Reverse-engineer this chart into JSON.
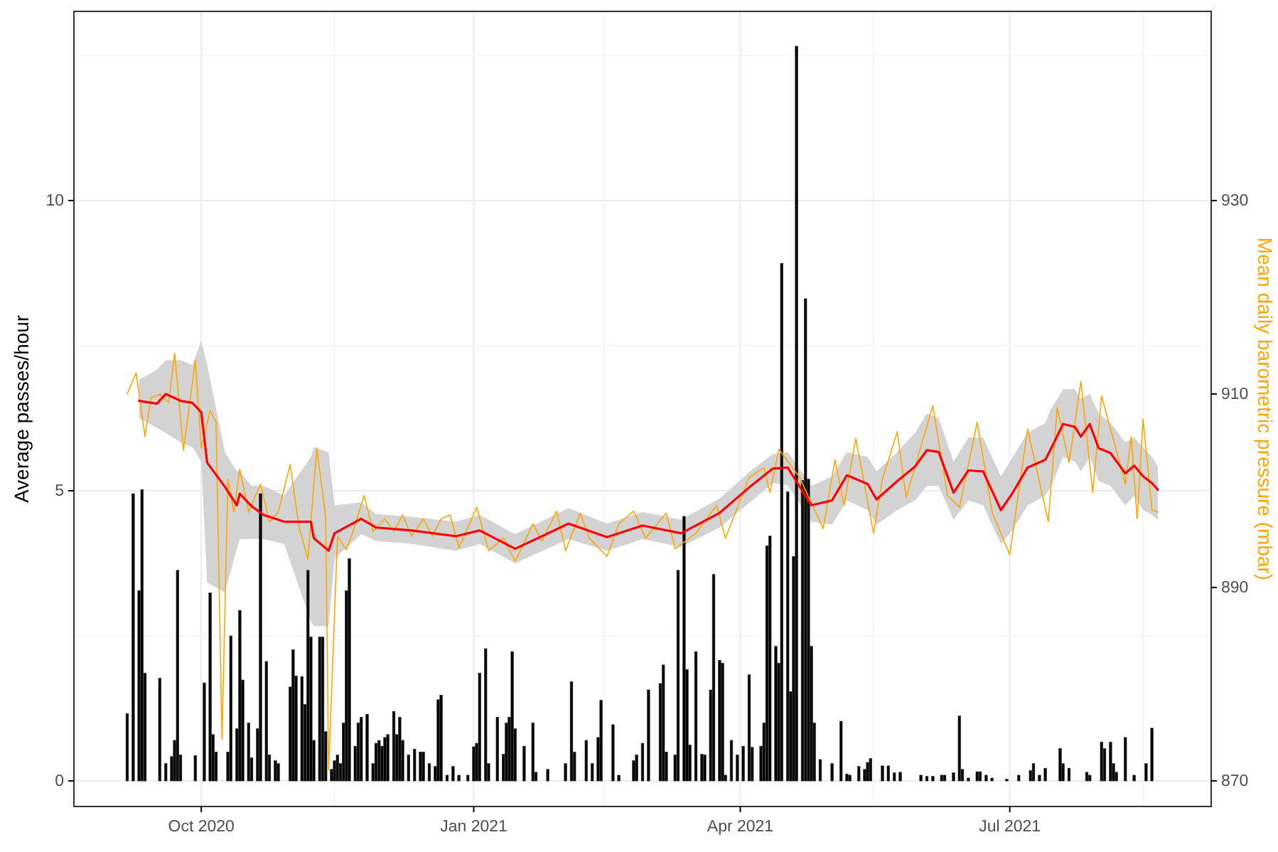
{
  "chart_data": {
    "type": "bar",
    "ylabel": "Average passes/hour",
    "y2label": "Mean daily barometric pressure (mbar)",
    "xlim": [
      "2020-08-19",
      "2021-09-07"
    ],
    "xticks": [
      {
        "value": "2020-10-01",
        "label": "Oct 2020"
      },
      {
        "value": "2020-11-15",
        "label": null
      },
      {
        "value": "2021-01-01",
        "label": "Jan 2021"
      },
      {
        "value": "2021-02-14",
        "label": null
      },
      {
        "value": "2021-04-01",
        "label": "Apr 2021"
      },
      {
        "value": "2021-05-16",
        "label": null
      },
      {
        "value": "2021-07-01",
        "label": "Jul 2021"
      },
      {
        "value": "2021-08-15",
        "label": null
      }
    ],
    "ylim": [
      -0.44,
      13.26
    ],
    "yticks": [
      0,
      {
        "value": 2.5,
        "label": null
      },
      5,
      {
        "value": 7.5,
        "label": null
      },
      10,
      {
        "value": 12.5,
        "label": null
      }
    ],
    "y2lim": [
      867.36,
      949.56
    ],
    "y2ticks": [
      870,
      890,
      910,
      930
    ],
    "grid": true,
    "series": [
      {
        "color": "#000000",
        "x": [
          "2020-09-06",
          "2020-09-08",
          "2020-09-10",
          "2020-09-11",
          "2020-09-12",
          "2020-09-17",
          "2020-09-19",
          "2020-09-21",
          "2020-09-22",
          "2020-09-23",
          "2020-09-24",
          "2020-09-29",
          "2020-10-02",
          "2020-10-04",
          "2020-10-05",
          "2020-10-06",
          "2020-10-10",
          "2020-10-11",
          "2020-10-13",
          "2020-10-14",
          "2020-10-15",
          "2020-10-17",
          "2020-10-18",
          "2020-10-20",
          "2020-10-21",
          "2020-10-23",
          "2020-10-24",
          "2020-10-26",
          "2020-10-27",
          "2020-10-31",
          "2020-11-01",
          "2020-11-02",
          "2020-11-04",
          "2020-11-05",
          "2020-11-06",
          "2020-11-07",
          "2020-11-08",
          "2020-11-10",
          "2020-11-11",
          "2020-11-12",
          "2020-11-14",
          "2020-11-15",
          "2020-11-16",
          "2020-11-17",
          "2020-11-18",
          "2020-11-19",
          "2020-11-20",
          "2020-11-22",
          "2020-11-23",
          "2020-11-24",
          "2020-11-26",
          "2020-11-28",
          "2020-11-29",
          "2020-11-30",
          "2020-12-01",
          "2020-12-02",
          "2020-12-03",
          "2020-12-05",
          "2020-12-06",
          "2020-12-07",
          "2020-12-08",
          "2020-12-10",
          "2020-12-12",
          "2020-12-14",
          "2020-12-15",
          "2020-12-17",
          "2020-12-19",
          "2020-12-20",
          "2020-12-21",
          "2020-12-23",
          "2020-12-25",
          "2020-12-27",
          "2020-12-30",
          "2021-01-01",
          "2021-01-02",
          "2021-01-03",
          "2021-01-05",
          "2021-01-06",
          "2021-01-09",
          "2021-01-11",
          "2021-01-12",
          "2021-01-13",
          "2021-01-14",
          "2021-01-15",
          "2021-01-18",
          "2021-01-21",
          "2021-01-22",
          "2021-01-26",
          "2021-02-01",
          "2021-02-03",
          "2021-02-04",
          "2021-02-08",
          "2021-02-10",
          "2021-02-12",
          "2021-02-13",
          "2021-02-17",
          "2021-02-19",
          "2021-02-24",
          "2021-02-25",
          "2021-02-27",
          "2021-03-01",
          "2021-03-05",
          "2021-03-06",
          "2021-03-07",
          "2021-03-10",
          "2021-03-11",
          "2021-03-13",
          "2021-03-14",
          "2021-03-15",
          "2021-03-17",
          "2021-03-19",
          "2021-03-20",
          "2021-03-22",
          "2021-03-23",
          "2021-03-25",
          "2021-03-26",
          "2021-03-27",
          "2021-03-29",
          "2021-03-31",
          "2021-04-02",
          "2021-04-04",
          "2021-04-05",
          "2021-04-08",
          "2021-04-09",
          "2021-04-10",
          "2021-04-11",
          "2021-04-13",
          "2021-04-14",
          "2021-04-15",
          "2021-04-17",
          "2021-04-18",
          "2021-04-19",
          "2021-04-20",
          "2021-04-22",
          "2021-04-23",
          "2021-04-24",
          "2021-04-25",
          "2021-04-26",
          "2021-04-28",
          "2021-05-02",
          "2021-05-05",
          "2021-05-07",
          "2021-05-08",
          "2021-05-11",
          "2021-05-13",
          "2021-05-14",
          "2021-05-15",
          "2021-05-19",
          "2021-05-21",
          "2021-05-23",
          "2021-05-25",
          "2021-06-01",
          "2021-06-03",
          "2021-06-05",
          "2021-06-08",
          "2021-06-09",
          "2021-06-12",
          "2021-06-14",
          "2021-06-15",
          "2021-06-17",
          "2021-06-20",
          "2021-06-21",
          "2021-06-23",
          "2021-06-25",
          "2021-06-30",
          "2021-07-04",
          "2021-07-08",
          "2021-07-09",
          "2021-07-11",
          "2021-07-13",
          "2021-07-18",
          "2021-07-19",
          "2021-07-21",
          "2021-07-27",
          "2021-07-28",
          "2021-08-01",
          "2021-08-02",
          "2021-08-04",
          "2021-08-05",
          "2021-08-06",
          "2021-08-09",
          "2021-08-12",
          "2021-08-16",
          "2021-08-18"
        ],
        "values": [
          1.16,
          4.95,
          3.28,
          5.02,
          1.86,
          1.77,
          0.3,
          0.42,
          0.7,
          3.63,
          0.45,
          0.44,
          1.69,
          3.24,
          0.8,
          0.5,
          0.5,
          2.5,
          0.9,
          2.94,
          1.74,
          1.0,
          0.4,
          0.9,
          4.95,
          2.06,
          0.45,
          0.35,
          0.3,
          1.62,
          2.26,
          1.81,
          1.8,
          1.32,
          3.63,
          2.48,
          0.7,
          2.48,
          2.48,
          0.85,
          0.2,
          0.35,
          0.45,
          0.3,
          1.0,
          3.28,
          3.83,
          0.6,
          1.0,
          1.1,
          1.15,
          0.3,
          0.65,
          0.7,
          0.6,
          0.75,
          0.8,
          1.2,
          0.8,
          1.1,
          0.7,
          0.45,
          0.55,
          0.5,
          0.5,
          0.3,
          0.25,
          1.4,
          1.48,
          0.1,
          0.25,
          0.1,
          0.1,
          0.59,
          0.65,
          1.86,
          2.28,
          0.3,
          1.1,
          0.46,
          1.0,
          1.1,
          2.23,
          0.9,
          0.6,
          1.0,
          0.15,
          0.2,
          0.3,
          1.71,
          0.5,
          0.7,
          0.3,
          0.75,
          1.39,
          0.97,
          0.1,
          0.35,
          0.45,
          0.65,
          1.57,
          1.68,
          2.0,
          0.5,
          0.45,
          3.63,
          4.56,
          1.92,
          0.62,
          2.23,
          0.46,
          0.45,
          1.57,
          3.56,
          2.08,
          2.03,
          0.1,
          0.7,
          0.45,
          0.6,
          1.83,
          0.58,
          0.6,
          1.0,
          4.05,
          4.22,
          2.32,
          2.03,
          8.92,
          4.98,
          1.54,
          3.87,
          12.66,
          5.18,
          8.31,
          5.2,
          2.32,
          1.0,
          0.37,
          0.3,
          1.03,
          0.12,
          0.1,
          0.25,
          0.2,
          0.32,
          0.39,
          0.26,
          0.26,
          0.14,
          0.15,
          0.1,
          0.08,
          0.08,
          0.1,
          0.1,
          0.14,
          1.12,
          0.2,
          0.05,
          0.16,
          0.16,
          0.1,
          0.05,
          0.03,
          0.1,
          0.18,
          0.3,
          0.1,
          0.22,
          0.56,
          0.3,
          0.22,
          0.15,
          0.1,
          0.67,
          0.56,
          0.67,
          0.3,
          0.15,
          0.75,
          0.1,
          0.3,
          0.91
        ]
      },
      {
        "type": "line",
        "axis": "y2",
        "color": "#ffa500",
        "x": [
          "2020-09-06",
          "2020-09-09",
          "2020-09-12",
          "2020-09-14",
          "2020-09-17",
          "2020-09-20",
          "2020-09-22",
          "2020-09-25",
          "2020-09-29",
          "2020-10-01",
          "2020-10-04",
          "2020-10-06",
          "2020-10-08",
          "2020-10-10",
          "2020-10-12",
          "2020-10-14",
          "2020-10-17",
          "2020-10-21",
          "2020-10-24",
          "2020-10-27",
          "2020-10-31",
          "2020-11-03",
          "2020-11-06",
          "2020-11-09",
          "2020-11-12",
          "2020-11-13",
          "2020-11-16",
          "2020-11-19",
          "2020-11-21",
          "2020-11-25",
          "2020-11-28",
          "2020-12-02",
          "2020-12-05",
          "2020-12-08",
          "2020-12-11",
          "2020-12-15",
          "2020-12-18",
          "2020-12-21",
          "2020-12-24",
          "2020-12-27",
          "2021-01-02",
          "2021-01-06",
          "2021-01-11",
          "2021-01-15",
          "2021-01-21",
          "2021-01-24",
          "2021-01-29",
          "2021-02-01",
          "2021-02-06",
          "2021-02-09",
          "2021-02-15",
          "2021-02-19",
          "2021-02-24",
          "2021-02-28",
          "2021-03-07",
          "2021-03-10",
          "2021-03-17",
          "2021-03-24",
          "2021-03-27",
          "2021-04-04",
          "2021-04-09",
          "2021-04-11",
          "2021-04-14",
          "2021-04-21",
          "2021-04-29",
          "2021-05-03",
          "2021-05-06",
          "2021-05-10",
          "2021-05-16",
          "2021-05-19",
          "2021-05-24",
          "2021-05-27",
          "2021-06-05",
          "2021-06-10",
          "2021-06-14",
          "2021-06-20",
          "2021-06-25",
          "2021-07-01",
          "2021-07-07",
          "2021-07-14",
          "2021-07-17",
          "2021-07-21",
          "2021-07-25",
          "2021-07-29",
          "2021-08-01",
          "2021-08-09",
          "2021-08-11",
          "2021-08-13",
          "2021-08-15",
          "2021-08-18",
          "2021-08-20"
        ],
        "values": [
          910.0,
          912.2,
          905.6,
          909.6,
          910.0,
          909.1,
          914.2,
          904.2,
          913.5,
          904.4,
          908.3,
          907.1,
          874.3,
          901.2,
          897.8,
          902.2,
          897.8,
          900.7,
          896.8,
          897.8,
          902.7,
          896.3,
          892.9,
          904.4,
          897.3,
          871.1,
          895.3,
          893.9,
          895.6,
          899.5,
          895.8,
          897.1,
          895.8,
          897.5,
          895.3,
          897.1,
          895.3,
          897.1,
          897.5,
          894.1,
          898.3,
          893.8,
          895.1,
          892.7,
          896.6,
          894.8,
          897.9,
          893.8,
          897.7,
          895.1,
          893.2,
          896.6,
          897.9,
          895.1,
          897.7,
          894.0,
          895.6,
          898.5,
          895.1,
          901.4,
          902.4,
          899.8,
          904.3,
          901.4,
          896.1,
          903.2,
          898.5,
          905.4,
          895.6,
          901.2,
          906.1,
          899.3,
          908.8,
          899.5,
          898.3,
          907.1,
          897.8,
          893.4,
          906.4,
          896.8,
          908.6,
          902.9,
          911.3,
          899.8,
          909.8,
          900.7,
          905.6,
          897.1,
          907.4,
          898.0,
          897.8
        ]
      },
      {
        "type": "line",
        "axis": "y2",
        "color": "#ff0000",
        "x": [
          "2020-09-10",
          "2020-09-16",
          "2020-09-19",
          "2020-09-24",
          "2020-09-28",
          "2020-10-01",
          "2020-10-03",
          "2020-10-09",
          "2020-10-13",
          "2020-10-14",
          "2020-10-18",
          "2020-10-22",
          "2020-10-29",
          "2020-11-07",
          "2020-11-08",
          "2020-11-13",
          "2020-11-15",
          "2020-11-24",
          "2020-11-29",
          "2020-12-11",
          "2020-12-26",
          "2021-01-03",
          "2021-01-15",
          "2021-02-02",
          "2021-02-15",
          "2021-02-27",
          "2021-03-12",
          "2021-03-25",
          "2021-04-05",
          "2021-04-12",
          "2021-04-17",
          "2021-04-25",
          "2021-05-02",
          "2021-05-07",
          "2021-05-14",
          "2021-05-17",
          "2021-05-24",
          "2021-05-30",
          "2021-06-03",
          "2021-06-07",
          "2021-06-12",
          "2021-06-17",
          "2021-06-22",
          "2021-06-28",
          "2021-07-02",
          "2021-07-07",
          "2021-07-13",
          "2021-07-15",
          "2021-07-19",
          "2021-07-23",
          "2021-07-25",
          "2021-07-28",
          "2021-07-31",
          "2021-08-04",
          "2021-08-09",
          "2021-08-12",
          "2021-08-15",
          "2021-08-18",
          "2021-08-20"
        ],
        "values": [
          909.3,
          909.0,
          910.0,
          909.3,
          909.1,
          908.1,
          902.9,
          900.4,
          898.5,
          899.7,
          898.4,
          897.5,
          896.8,
          896.8,
          895.1,
          893.8,
          895.6,
          897.1,
          896.2,
          895.9,
          895.3,
          895.9,
          894.0,
          896.6,
          895.2,
          896.4,
          895.6,
          897.7,
          900.6,
          902.3,
          902.4,
          898.5,
          899.0,
          901.6,
          900.7,
          899.1,
          901.0,
          902.5,
          904.2,
          904.0,
          899.8,
          902.1,
          902.0,
          898.0,
          899.8,
          902.4,
          903.2,
          904.4,
          906.9,
          906.6,
          905.6,
          906.9,
          904.4,
          903.9,
          901.8,
          902.6,
          901.5,
          900.8,
          900.1
        ],
        "lower": [
          907.5,
          906.5,
          906,
          905,
          904.5,
          903,
          890.5,
          889.5,
          894,
          895,
          895,
          895,
          894.5,
          886.5,
          886,
          886,
          893,
          895.5,
          894.8,
          894.5,
          893.8,
          894.5,
          892.5,
          895,
          893.8,
          895,
          894.2,
          896.2,
          899,
          900.8,
          900.6,
          896.8,
          896.5,
          899,
          898,
          896.5,
          898,
          899,
          900.5,
          900.5,
          897,
          899,
          898.5,
          894.5,
          896,
          898.5,
          899.5,
          900.5,
          903.5,
          903,
          902,
          903.5,
          901,
          900.5,
          898.5,
          899.5,
          898,
          897.5,
          897
        ],
        "upper": [
          911.5,
          912.5,
          913.5,
          913.5,
          913,
          915.5,
          913,
          904,
          902,
          902,
          900.5,
          900.5,
          899.5,
          903.5,
          904.5,
          904,
          898.5,
          898.8,
          897.6,
          897.3,
          896.8,
          897.5,
          895.5,
          898.2,
          896.6,
          897.8,
          897,
          899.2,
          902.2,
          903.8,
          904,
          900.5,
          901.5,
          904,
          903.5,
          902,
          904,
          906,
          908,
          907.5,
          903,
          905.5,
          905.5,
          901.5,
          903.5,
          906,
          907,
          908.5,
          910.5,
          910.5,
          909.5,
          910,
          908,
          907,
          905,
          905.5,
          904.5,
          903.5,
          902.5
        ]
      }
    ]
  }
}
